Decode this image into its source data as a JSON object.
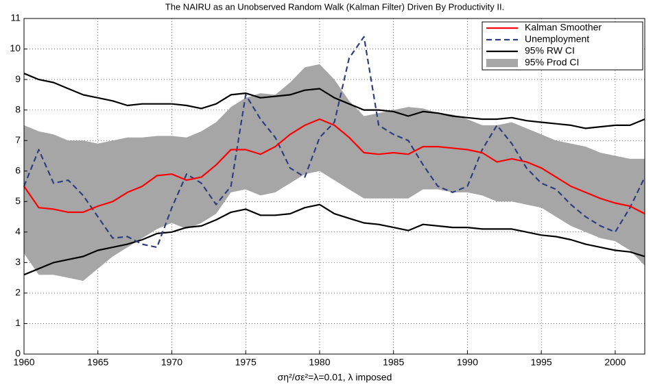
{
  "chart_data": {
    "type": "line",
    "title": "The NAIRU as an Unobserved Random Walk (Kalman Filter) Driven By Productivity II.",
    "xlabel": "ση²/σε²=λ=0.01, λ imposed",
    "x": [
      1960,
      1961,
      1962,
      1963,
      1964,
      1965,
      1966,
      1967,
      1968,
      1969,
      1970,
      1971,
      1972,
      1973,
      1974,
      1975,
      1976,
      1977,
      1978,
      1979,
      1980,
      1981,
      1982,
      1983,
      1984,
      1985,
      1986,
      1987,
      1988,
      1989,
      1990,
      1991,
      1992,
      1993,
      1994,
      1995,
      1996,
      1997,
      1998,
      1999,
      2000,
      2001,
      2002
    ],
    "xlim": [
      1960,
      2002
    ],
    "xticks": [
      1960,
      1965,
      1970,
      1975,
      1980,
      1985,
      1990,
      1995,
      2000
    ],
    "ylim": [
      0,
      11
    ],
    "yticks": [
      0,
      1,
      2,
      3,
      4,
      5,
      6,
      7,
      8,
      9,
      10,
      11
    ],
    "grid": true,
    "legend": "upper right",
    "series": [
      {
        "name": "Kalman Smoother",
        "color": "#ff0000",
        "style": "solid",
        "values": [
          5.5,
          4.8,
          4.75,
          4.65,
          4.65,
          4.85,
          5.0,
          5.3,
          5.5,
          5.85,
          5.9,
          5.7,
          5.8,
          6.2,
          6.7,
          6.7,
          6.55,
          6.8,
          7.2,
          7.5,
          7.7,
          7.5,
          7.1,
          6.6,
          6.55,
          6.6,
          6.55,
          6.8,
          6.8,
          6.75,
          6.7,
          6.6,
          6.3,
          6.4,
          6.3,
          6.1,
          5.8,
          5.5,
          5.3,
          5.1,
          4.95,
          4.85,
          4.6
        ]
      },
      {
        "name": "Unemployment",
        "color": "#2e3d80",
        "style": "dashed",
        "values": [
          5.5,
          6.7,
          5.6,
          5.7,
          5.2,
          4.5,
          3.8,
          3.85,
          3.6,
          3.5,
          4.8,
          5.9,
          5.6,
          4.9,
          5.5,
          8.5,
          7.7,
          7.1,
          6.1,
          5.8,
          7.1,
          7.6,
          9.7,
          10.4,
          7.5,
          7.2,
          7.0,
          6.2,
          5.5,
          5.3,
          5.5,
          6.7,
          7.5,
          6.9,
          6.1,
          5.6,
          5.4,
          4.9,
          4.5,
          4.2,
          4.0,
          4.8,
          5.8
        ]
      },
      {
        "name": "95% RW CI",
        "color": "#000000",
        "style": "pair",
        "upper": [
          9.2,
          9.0,
          8.9,
          8.7,
          8.5,
          8.4,
          8.3,
          8.15,
          8.2,
          8.2,
          8.2,
          8.15,
          8.05,
          8.2,
          8.5,
          8.55,
          8.4,
          8.45,
          8.5,
          8.65,
          8.7,
          8.4,
          8.2,
          8.0,
          8.0,
          7.95,
          7.8,
          7.95,
          7.9,
          7.8,
          7.75,
          7.7,
          7.7,
          7.75,
          7.65,
          7.6,
          7.55,
          7.5,
          7.4,
          7.45,
          7.5,
          7.5,
          7.7
        ],
        "lower": [
          2.6,
          2.8,
          3.0,
          3.1,
          3.2,
          3.4,
          3.5,
          3.6,
          3.75,
          3.95,
          4.0,
          4.15,
          4.2,
          4.4,
          4.65,
          4.75,
          4.55,
          4.55,
          4.6,
          4.8,
          4.9,
          4.6,
          4.45,
          4.3,
          4.25,
          4.15,
          4.05,
          4.25,
          4.2,
          4.15,
          4.15,
          4.1,
          4.1,
          4.1,
          4.0,
          3.9,
          3.85,
          3.75,
          3.6,
          3.5,
          3.4,
          3.35,
          3.2
        ]
      },
      {
        "name": "95% Prod CI",
        "color": "#a6a6a6",
        "style": "band",
        "upper": [
          7.5,
          7.3,
          7.2,
          7.0,
          7.0,
          6.9,
          7.0,
          7.1,
          7.1,
          7.15,
          7.15,
          7.1,
          7.3,
          7.6,
          8.1,
          8.4,
          8.55,
          8.5,
          8.9,
          9.4,
          9.5,
          9.0,
          8.3,
          7.8,
          7.9,
          8.0,
          8.1,
          8.05,
          7.9,
          7.85,
          7.7,
          7.5,
          7.5,
          7.6,
          7.4,
          7.2,
          7.0,
          6.9,
          6.8,
          6.6,
          6.5,
          6.4,
          6.4
        ],
        "lower": [
          3.3,
          2.6,
          2.6,
          2.5,
          2.4,
          2.8,
          3.2,
          3.5,
          3.8,
          4.1,
          4.3,
          4.1,
          4.3,
          4.6,
          5.3,
          5.4,
          5.2,
          5.3,
          5.6,
          5.9,
          6.0,
          5.7,
          5.4,
          5.1,
          5.1,
          5.1,
          5.1,
          5.4,
          5.4,
          5.3,
          5.3,
          5.2,
          5.0,
          5.0,
          4.9,
          4.8,
          4.5,
          4.2,
          4.0,
          3.8,
          3.7,
          3.4,
          2.9
        ]
      }
    ]
  }
}
